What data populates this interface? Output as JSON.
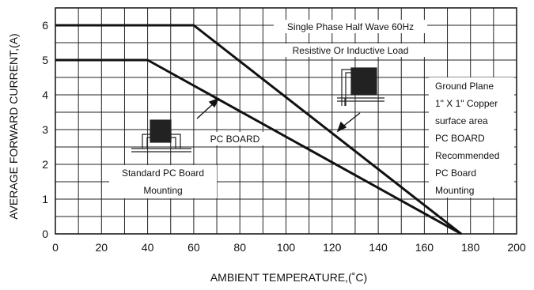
{
  "chart_data": {
    "type": "line",
    "title": "",
    "xlabel": "AMBIENT TEMPERATURE,(˚C)",
    "ylabel": "AVERAGE FORWARD CURRENT,(A)",
    "xlim": [
      0,
      200
    ],
    "ylim": [
      0,
      6.5
    ],
    "x_ticks": [
      0,
      20,
      40,
      60,
      80,
      100,
      120,
      140,
      160,
      180,
      200
    ],
    "y_ticks": [
      0,
      1,
      2,
      3,
      4,
      5,
      6
    ],
    "grid": true,
    "series": [
      {
        "values": [
          [
            0,
            6
          ],
          [
            60,
            6
          ],
          [
            176,
            0
          ]
        ]
      },
      {
        "values": [
          [
            0,
            5
          ],
          [
            40,
            5
          ],
          [
            176,
            0
          ]
        ]
      }
    ],
    "annotations": {
      "top_note_1": "Single Phase Half Wave 60Hz",
      "top_note_2": "Resistive Or Inductive Load",
      "right_notes": [
        "Ground Plane",
        "1\" X 1\" Copper",
        "surface area",
        "PC BOARD",
        "Recommended",
        "PC Board",
        "Mounting"
      ],
      "pc_board_label": "PC BOARD",
      "std_mount_1": "Standard PC Board",
      "std_mount_2": "Mounting"
    }
  },
  "colors": {
    "line": "#111111",
    "grid": "#222222",
    "package": "#222222"
  }
}
